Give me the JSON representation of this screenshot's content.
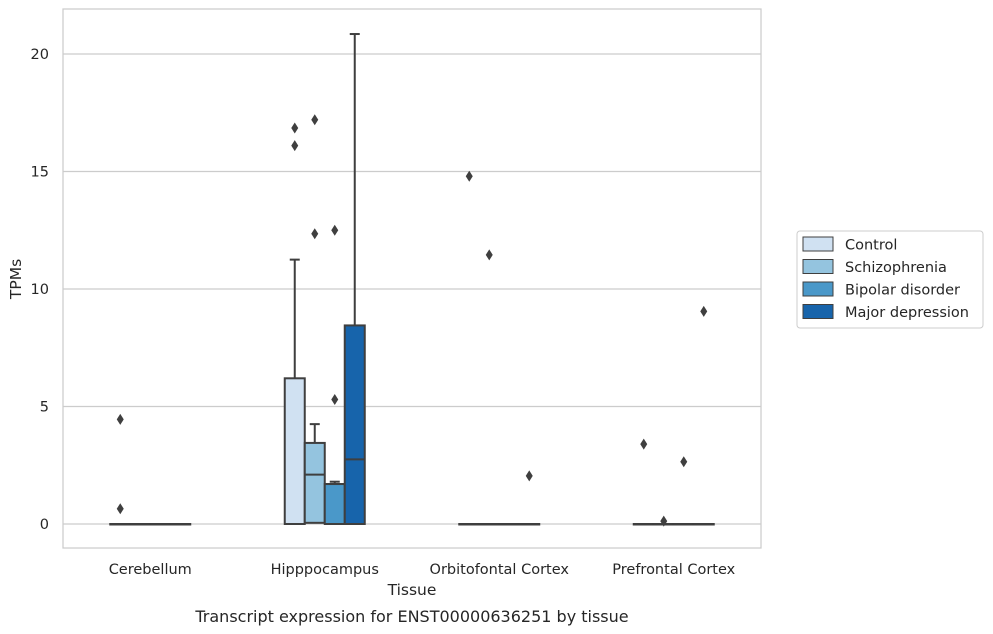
{
  "chart_data": {
    "type": "box",
    "title": "",
    "xlabel": "Tissue",
    "ylabel": "TPMs",
    "caption": "Transcript expression for ENST00000636251 by tissue",
    "ylim": [
      -1,
      22
    ],
    "yticks": [
      0,
      5,
      10,
      15,
      20
    ],
    "grid": "horizontal",
    "legend_position": "right",
    "categories": [
      "Cerebellum",
      "Hipppocampus",
      "Orbitofontal Cortex",
      "Prefrontal Cortex"
    ],
    "series": [
      {
        "name": "Control",
        "color": "#d0e1f2",
        "boxes": [
          {
            "q1": 0,
            "median": 0,
            "q3": 0,
            "whisker_low": 0,
            "whisker_high": 0,
            "outliers": [
              4.45,
              0.65
            ]
          },
          {
            "q1": 0,
            "median": 0,
            "q3": 6.2,
            "whisker_low": 0,
            "whisker_high": 11.25,
            "outliers": [
              16.85,
              16.1
            ]
          },
          {
            "q1": 0,
            "median": 0,
            "q3": 0,
            "whisker_low": 0,
            "whisker_high": 0,
            "outliers": [
              14.8
            ]
          },
          {
            "q1": 0,
            "median": 0,
            "q3": 0,
            "whisker_low": 0,
            "whisker_high": 0,
            "outliers": [
              3.4
            ]
          }
        ]
      },
      {
        "name": "Schizophrenia",
        "color": "#94c4df",
        "boxes": [
          {
            "q1": 0,
            "median": 0,
            "q3": 0,
            "whisker_low": 0,
            "whisker_high": 0,
            "outliers": []
          },
          {
            "q1": 0.05,
            "median": 2.1,
            "q3": 3.45,
            "whisker_low": 0.05,
            "whisker_high": 4.25,
            "outliers": [
              17.2,
              12.35
            ]
          },
          {
            "q1": 0,
            "median": 0,
            "q3": 0,
            "whisker_low": 0,
            "whisker_high": 0,
            "outliers": [
              11.45
            ]
          },
          {
            "q1": 0,
            "median": 0,
            "q3": 0,
            "whisker_low": 0,
            "whisker_high": 0,
            "outliers": [
              0.12
            ]
          }
        ]
      },
      {
        "name": "Bipolar disorder",
        "color": "#4a98c9",
        "boxes": [
          {
            "q1": 0,
            "median": 0,
            "q3": 0,
            "whisker_low": 0,
            "whisker_high": 0,
            "outliers": []
          },
          {
            "q1": 0,
            "median": 1.7,
            "q3": 1.7,
            "whisker_low": 0,
            "whisker_high": 1.8,
            "outliers": [
              12.5,
              5.3
            ]
          },
          {
            "q1": 0,
            "median": 0,
            "q3": 0,
            "whisker_low": 0,
            "whisker_high": 0,
            "outliers": []
          },
          {
            "q1": 0,
            "median": 0,
            "q3": 0,
            "whisker_low": 0,
            "whisker_high": 0,
            "outliers": [
              2.65
            ]
          }
        ]
      },
      {
        "name": "Major depression",
        "color": "#1764ab",
        "boxes": [
          {
            "q1": 0,
            "median": 0,
            "q3": 0,
            "whisker_low": 0,
            "whisker_high": 0,
            "outliers": []
          },
          {
            "q1": 0,
            "median": 2.75,
            "q3": 8.45,
            "whisker_low": 0,
            "whisker_high": 20.85,
            "outliers": []
          },
          {
            "q1": 0,
            "median": 0,
            "q3": 0,
            "whisker_low": 0,
            "whisker_high": 0,
            "outliers": [
              2.05
            ]
          },
          {
            "q1": 0,
            "median": 0,
            "q3": 0,
            "whisker_low": 0,
            "whisker_high": 0,
            "outliers": [
              9.05
            ]
          }
        ]
      }
    ]
  }
}
